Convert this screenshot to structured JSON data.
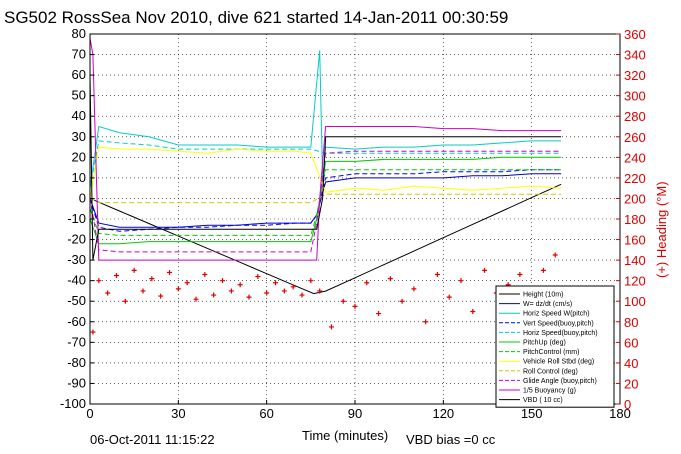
{
  "title": "SG502 RossSea Nov 2010, dive 621 started 14-Jan-2011 00:30:59",
  "footer_left": "06-Oct-2011 11:15:22",
  "footer_right": "VBD bias =0 cc",
  "chart_data": {
    "type": "line",
    "title": "SG502 RossSea Nov 2010, dive 621 started 14-Jan-2011 00:30:59",
    "xlabel": "Time (minutes)",
    "ylabel": "",
    "ylabel_right": "(+) Heading (°M)",
    "xlim": [
      0,
      180
    ],
    "ylim": [
      -100,
      80
    ],
    "ylim_right": [
      0,
      360
    ],
    "x_ticks": [
      "0",
      "30",
      "60",
      "90",
      "120",
      "150",
      "180"
    ],
    "y_ticks": [
      "80",
      "70",
      "60",
      "50",
      "40",
      "30",
      "20",
      "10",
      "0",
      "-10",
      "-20",
      "-30",
      "-40",
      "-50",
      "-60",
      "-70",
      "-80",
      "-90",
      "-100"
    ],
    "y_ticks_right": [
      "360",
      "340",
      "320",
      "300",
      "280",
      "260",
      "240",
      "220",
      "200",
      "180",
      "160",
      "140",
      "120",
      "100",
      "80",
      "60",
      "40",
      "20",
      "0"
    ],
    "grid": true,
    "legend_position": "bottom-right",
    "series": [
      {
        "name": "Height (10m)",
        "color": "#000000",
        "style": "solid",
        "x": [
          0,
          10,
          20,
          30,
          40,
          50,
          60,
          70,
          76,
          80,
          90,
          100,
          110,
          120,
          130,
          140,
          150,
          160
        ],
        "y": [
          0,
          -6.1,
          -12.2,
          -18.3,
          -24.4,
          -30.5,
          -36.6,
          -42.7,
          -46.3,
          -45.1,
          -38.6,
          -32.1,
          -25.6,
          -19.1,
          -12.6,
          -6.1,
          0.4,
          6.9
        ]
      },
      {
        "name": "W= dz/dt (cm/s)",
        "color": "#0000cc",
        "style": "solid",
        "x": [
          0,
          3,
          10,
          20,
          30,
          40,
          50,
          60,
          70,
          75,
          77,
          80,
          90,
          100,
          110,
          120,
          130,
          140,
          150,
          160
        ],
        "y": [
          0,
          -12,
          -14,
          -14,
          -14,
          -13,
          -13,
          -12,
          -12,
          -12,
          -8,
          8,
          10,
          10,
          10,
          10,
          11,
          11,
          12,
          12
        ]
      },
      {
        "name": "Horiz Speed W(pitch)",
        "color": "#00cccc",
        "style": "solid",
        "x": [
          0,
          3,
          10,
          20,
          30,
          40,
          50,
          60,
          70,
          75,
          78,
          79,
          80,
          90,
          100,
          110,
          120,
          130,
          140,
          150,
          160
        ],
        "y": [
          5,
          35,
          32,
          30,
          26,
          26,
          26,
          25,
          25,
          25,
          72,
          10,
          25,
          24,
          25,
          25,
          26,
          26,
          27,
          28,
          28
        ]
      },
      {
        "name": "Vert Speed(buoy,pitch)",
        "color": "#0000ff",
        "style": "dashed",
        "x": [
          0,
          3,
          10,
          20,
          30,
          40,
          50,
          60,
          70,
          75,
          77,
          80,
          90,
          100,
          110,
          120,
          130,
          140,
          150,
          160
        ],
        "y": [
          0,
          -14,
          -16,
          -15,
          -14,
          -14,
          -13,
          -13,
          -12,
          -12,
          -8,
          10,
          12,
          12,
          12,
          13,
          13,
          13,
          14,
          14
        ]
      },
      {
        "name": "Horiz Speed(buoy,pitch)",
        "color": "#00cccc",
        "style": "dashed",
        "x": [
          0,
          3,
          10,
          20,
          30,
          40,
          50,
          60,
          70,
          75,
          80,
          90,
          100,
          110,
          120,
          130,
          140,
          150,
          160
        ],
        "y": [
          5,
          28,
          27,
          26,
          24,
          24,
          24,
          24,
          24,
          24,
          22,
          22,
          22,
          22,
          22,
          22,
          22,
          22,
          22
        ]
      },
      {
        "name": "PitchUp (deg)",
        "color": "#00cc00",
        "style": "solid",
        "x": [
          0,
          3,
          10,
          20,
          30,
          40,
          50,
          60,
          70,
          75,
          77,
          80,
          90,
          100,
          110,
          120,
          130,
          140,
          150,
          160
        ],
        "y": [
          -10,
          -22,
          -22,
          -21,
          -21,
          -21,
          -21,
          -21,
          -21,
          -21,
          -10,
          18,
          18,
          19,
          19,
          19,
          19,
          20,
          20,
          20
        ]
      },
      {
        "name": "PitchControl (mm)",
        "color": "#00cc00",
        "style": "dashed",
        "x": [
          0,
          3,
          10,
          20,
          30,
          40,
          50,
          60,
          70,
          75,
          77,
          80,
          90,
          100,
          110,
          120,
          130,
          140,
          150,
          160
        ],
        "y": [
          -5,
          -17,
          -18,
          -18,
          -18,
          -18,
          -18,
          -18,
          -18,
          -18,
          -8,
          14,
          14,
          14,
          14,
          14,
          14,
          14,
          14,
          14
        ]
      },
      {
        "name": "Vehicle Roll Stbd (deg)",
        "color": "#ffff00",
        "style": "solid",
        "x": [
          0,
          3,
          10,
          20,
          30,
          40,
          50,
          60,
          70,
          75,
          80,
          90,
          100,
          110,
          120,
          130,
          140,
          150,
          160
        ],
        "y": [
          0,
          25,
          24,
          24,
          23,
          22,
          24,
          23,
          23,
          22,
          3,
          5,
          4,
          6,
          5,
          4,
          5,
          6,
          5
        ]
      },
      {
        "name": "Roll Control (deg)",
        "color": "#cccc00",
        "style": "dashed",
        "x": [
          0,
          3,
          10,
          20,
          30,
          40,
          50,
          60,
          70,
          75,
          80,
          90,
          100,
          110,
          120,
          130,
          140,
          150,
          160
        ],
        "y": [
          0,
          -2,
          -2,
          -2,
          -2,
          -2,
          -2,
          -2,
          -2,
          -2,
          2,
          2,
          2,
          2,
          2,
          2,
          2,
          2,
          2
        ]
      },
      {
        "name": "Glide Angle (buoy,pitch)",
        "color": "#cc00cc",
        "style": "dashed",
        "x": [
          0,
          3,
          10,
          20,
          30,
          40,
          50,
          60,
          70,
          75,
          77,
          80,
          90,
          100,
          110,
          120,
          130,
          140,
          150,
          160
        ],
        "y": [
          0,
          -25,
          -26,
          -26,
          -26,
          -26,
          -26,
          -26,
          -26,
          -26,
          -12,
          22,
          23,
          23,
          23,
          23,
          23,
          23,
          23,
          23
        ]
      },
      {
        "name": "1/5 Buoyancy (g)",
        "color": "#cc00cc",
        "style": "solid",
        "x": [
          0,
          1,
          3,
          10,
          20,
          30,
          40,
          50,
          60,
          70,
          75,
          77,
          78,
          80,
          90,
          100,
          110,
          120,
          130,
          140,
          150,
          160
        ],
        "y": [
          78,
          70,
          -30,
          -30,
          -30,
          -30,
          -30,
          -30,
          -30,
          -30,
          -30,
          -30,
          0,
          35,
          35,
          35,
          35,
          34,
          34,
          33,
          33,
          33
        ]
      },
      {
        "name": "VBD ( 10 cc)",
        "color": "#000000",
        "style": "solid",
        "x": [
          0,
          1,
          3,
          10,
          20,
          30,
          40,
          50,
          60,
          70,
          75,
          77,
          79,
          80,
          90,
          100,
          110,
          120,
          130,
          140,
          150,
          160
        ],
        "y": [
          60,
          -30,
          -15,
          -15,
          -15,
          -15,
          -15,
          -15,
          -15,
          -15,
          -15,
          -15,
          0,
          30,
          30,
          30,
          30,
          30,
          30,
          30,
          30,
          30
        ]
      },
      {
        "name": "(+) Heading (°M)",
        "color": "#dd0000",
        "style": "markers",
        "axis": "right",
        "x": [
          1,
          3,
          6,
          9,
          12,
          15,
          18,
          21,
          24,
          27,
          30,
          33,
          36,
          39,
          42,
          45,
          48,
          51,
          54,
          57,
          60,
          63,
          66,
          69,
          72,
          75,
          78,
          82,
          86,
          90,
          94,
          98,
          102,
          106,
          110,
          114,
          118,
          122,
          126,
          130,
          134,
          138,
          142,
          146,
          150,
          154,
          158
        ],
        "y": [
          70,
          120,
          108,
          125,
          100,
          130,
          110,
          122,
          105,
          128,
          112,
          118,
          102,
          126,
          106,
          120,
          110,
          116,
          104,
          124,
          108,
          118,
          110,
          114,
          106,
          120,
          110,
          75,
          100,
          95,
          118,
          88,
          122,
          100,
          112,
          80,
          126,
          104,
          120,
          90,
          130,
          108,
          116,
          126,
          112,
          130,
          145
        ]
      }
    ]
  }
}
